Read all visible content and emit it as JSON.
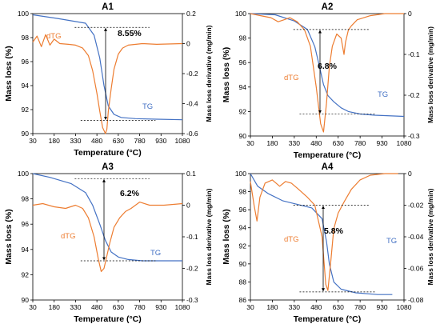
{
  "colors": {
    "tg": "#4472c4",
    "dtg": "#ed7d31",
    "axis": "#000000",
    "guide": "#000000"
  },
  "chart_data": [
    {
      "type": "line",
      "title": "A1",
      "xlabel": "Temperature (°C)",
      "ylabel": "Mass loss (%)",
      "y2label": "Mass loss derivative (mg/min)",
      "xlim": [
        30,
        1080
      ],
      "xticks": [
        "30",
        "180",
        "330",
        "480",
        "630",
        "780",
        "930",
        "1080"
      ],
      "ylim": [
        90,
        100
      ],
      "yticks": [
        "90",
        "92",
        "94",
        "96",
        "98",
        "100"
      ],
      "y2lim": [
        -0.6,
        0.2
      ],
      "y2ticks": [
        "-0.6",
        "-0.4",
        "-0.2",
        "0",
        "0.2"
      ],
      "grid": false,
      "annotation": "8.55%",
      "series": [
        {
          "name": "TG",
          "axis": "left",
          "x": [
            30,
            200,
            400,
            460,
            500,
            530,
            560,
            600,
            650,
            750,
            900,
            1080
          ],
          "y": [
            99.9,
            99.6,
            99.2,
            98.2,
            96.3,
            94.0,
            92.3,
            91.6,
            91.35,
            91.25,
            91.2,
            91.15
          ]
        },
        {
          "name": "dTG",
          "axis": "right",
          "x": [
            30,
            60,
            90,
            120,
            150,
            180,
            220,
            280,
            330,
            380,
            420,
            450,
            480,
            500,
            520,
            540,
            550,
            560,
            580,
            600,
            630,
            660,
            700,
            800,
            900,
            1080
          ],
          "y": [
            0.01,
            0.05,
            -0.02,
            0.06,
            -0.01,
            0.03,
            0.0,
            -0.005,
            -0.01,
            -0.03,
            -0.08,
            -0.18,
            -0.33,
            -0.45,
            -0.56,
            -0.6,
            -0.57,
            -0.45,
            -0.3,
            -0.17,
            -0.07,
            -0.03,
            -0.01,
            0.0,
            -0.005,
            0.0
          ]
        }
      ]
    },
    {
      "type": "line",
      "title": "A2",
      "xlabel": "Temperature (°C)",
      "ylabel": "Mass loss (%)",
      "y2label": "Mass loss derivative (mg/min)",
      "xlim": [
        30,
        1080
      ],
      "xticks": [
        "30",
        "180",
        "330",
        "480",
        "630",
        "780",
        "930",
        "1080"
      ],
      "ylim": [
        90,
        100
      ],
      "yticks": [
        "90",
        "92",
        "94",
        "96",
        "98",
        "100"
      ],
      "y2lim": [
        -0.3,
        0
      ],
      "y2ticks": [
        "-0.3",
        "-0.2",
        "-0.1",
        "0"
      ],
      "grid": false,
      "annotation": "6.8%",
      "series": [
        {
          "name": "TG",
          "axis": "left",
          "x": [
            30,
            200,
            330,
            420,
            470,
            500,
            530,
            560,
            600,
            650,
            700,
            780,
            880,
            1080
          ],
          "y": [
            100.0,
            99.9,
            99.4,
            98.7,
            97.3,
            95.8,
            94.2,
            93.3,
            92.8,
            92.3,
            92.0,
            91.8,
            91.7,
            91.6
          ]
        },
        {
          "name": "dTG",
          "axis": "right",
          "x": [
            30,
            100,
            170,
            220,
            260,
            300,
            350,
            400,
            440,
            480,
            510,
            530,
            550,
            570,
            590,
            620,
            650,
            670,
            680,
            700,
            720,
            760,
            850,
            950,
            1080
          ],
          "y": [
            0.0,
            -0.005,
            -0.01,
            -0.02,
            -0.015,
            -0.01,
            -0.02,
            -0.04,
            -0.08,
            -0.18,
            -0.27,
            -0.29,
            -0.22,
            -0.13,
            -0.08,
            -0.05,
            -0.06,
            -0.1,
            -0.07,
            -0.04,
            -0.03,
            -0.015,
            -0.005,
            0.0,
            0.0
          ]
        }
      ]
    },
    {
      "type": "line",
      "title": "A3",
      "xlabel": "Temperature (°C)",
      "ylabel": "Mass loss (%)",
      "y2label": "Mass loss derivative (mg/min)",
      "xlim": [
        30,
        1080
      ],
      "xticks": [
        "30",
        "180",
        "330",
        "480",
        "630",
        "780",
        "930",
        "1080"
      ],
      "ylim": [
        90,
        100
      ],
      "yticks": [
        "90",
        "92",
        "94",
        "96",
        "98",
        "100"
      ],
      "y2lim": [
        -0.3,
        0.1
      ],
      "y2ticks": [
        "-0.3",
        "-0.2",
        "-0.1",
        "0",
        "0.1"
      ],
      "grid": false,
      "annotation": "6.2%",
      "series": [
        {
          "name": "TG",
          "axis": "left",
          "x": [
            30,
            150,
            300,
            400,
            450,
            500,
            540,
            580,
            630,
            700,
            800,
            1080
          ],
          "y": [
            100.0,
            99.7,
            99.2,
            98.5,
            97.5,
            96.0,
            94.7,
            93.8,
            93.4,
            93.2,
            93.1,
            93.1
          ]
        },
        {
          "name": "dTG",
          "axis": "right",
          "x": [
            30,
            100,
            180,
            260,
            330,
            380,
            420,
            460,
            490,
            510,
            530,
            550,
            570,
            600,
            640,
            680,
            720,
            780,
            850,
            950,
            1080
          ],
          "y": [
            0.0,
            0.005,
            -0.005,
            -0.01,
            0.0,
            -0.01,
            -0.04,
            -0.1,
            -0.17,
            -0.21,
            -0.2,
            -0.16,
            -0.12,
            -0.07,
            -0.04,
            -0.02,
            -0.01,
            0.01,
            0.0,
            0.0,
            0.005
          ]
        }
      ]
    },
    {
      "type": "line",
      "title": "A4",
      "xlabel": "Temperature (°C)",
      "ylabel": "Mass loss (%)",
      "y2label": "Mass loss derivative (mg/min)",
      "xlim": [
        30,
        1080
      ],
      "xticks": [
        "30",
        "180",
        "330",
        "480",
        "630",
        "780",
        "930",
        "1080"
      ],
      "ylim": [
        86,
        100
      ],
      "yticks": [
        "86",
        "88",
        "90",
        "92",
        "94",
        "96",
        "98",
        "100"
      ],
      "y2lim": [
        -0.08,
        0
      ],
      "y2ticks": [
        "-0.08",
        "-0.06",
        "-0.04",
        "-0.02",
        "0"
      ],
      "grid": false,
      "annotation": "5.8%",
      "series": [
        {
          "name": "TG",
          "axis": "left",
          "x": [
            30,
            80,
            150,
            250,
            350,
            450,
            520,
            550,
            570,
            600,
            650,
            750,
            900,
            1000
          ],
          "y": [
            100.0,
            98.6,
            97.8,
            97.0,
            96.6,
            96.2,
            95.0,
            92.5,
            90.0,
            88.0,
            87.2,
            86.8,
            86.6,
            86.6
          ]
        },
        {
          "name": "dTG",
          "axis": "right",
          "x": [
            30,
            55,
            75,
            95,
            130,
            180,
            230,
            270,
            310,
            360,
            420,
            470,
            520,
            545,
            560,
            580,
            600,
            630,
            670,
            720,
            780,
            850,
            950,
            1040
          ],
          "y": [
            -0.005,
            -0.02,
            -0.03,
            -0.015,
            -0.006,
            -0.004,
            -0.008,
            -0.005,
            -0.006,
            -0.01,
            -0.015,
            -0.02,
            -0.04,
            -0.07,
            -0.074,
            -0.055,
            -0.035,
            -0.025,
            -0.018,
            -0.01,
            -0.004,
            -0.001,
            0.0,
            0.0
          ]
        }
      ]
    }
  ]
}
